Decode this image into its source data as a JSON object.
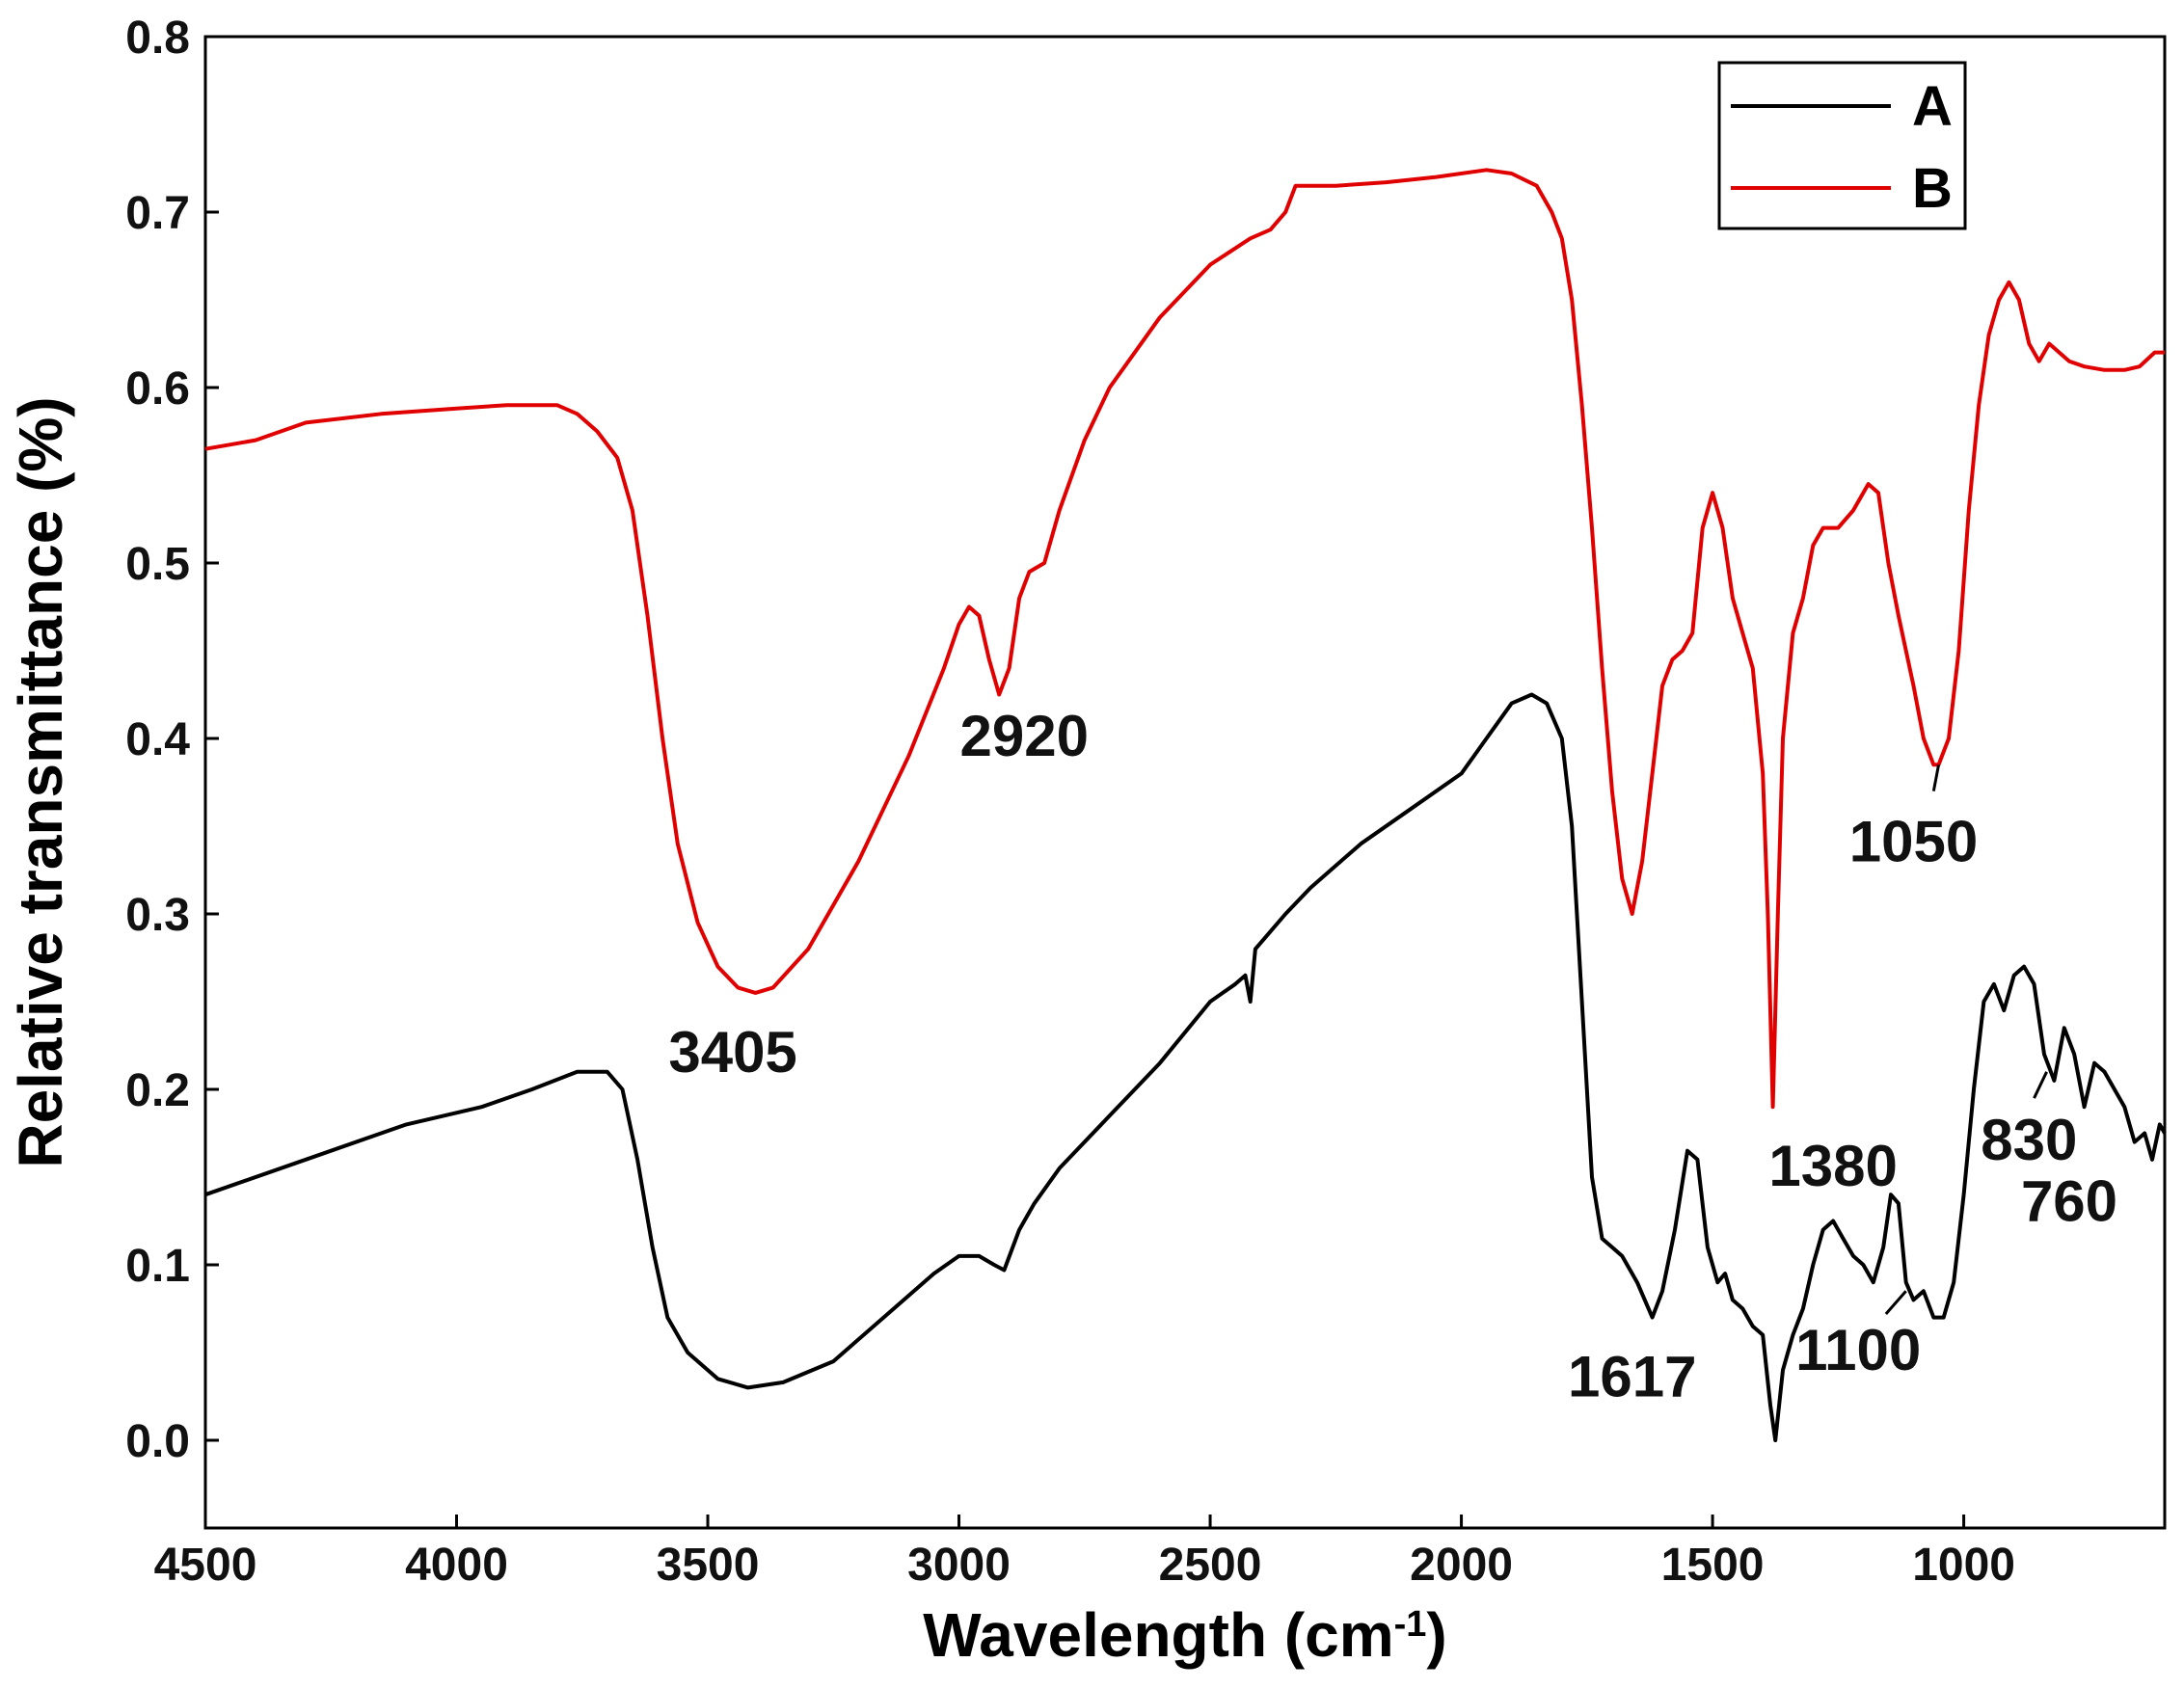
{
  "chart_data": {
    "type": "line",
    "xlabel": "Wavelength (cm",
    "xlabel_sup": "-1",
    "xlabel_close": ")",
    "ylabel": "Relative transmittance (%)",
    "xlim": [
      4500,
      600
    ],
    "ylim": [
      -0.05,
      0.8
    ],
    "x_reversed": true,
    "x_ticks": [
      4500,
      4000,
      3500,
      3000,
      2500,
      2000,
      1500,
      1000
    ],
    "x_tick_labels": [
      "4500",
      "4000",
      "3500",
      "3000",
      "2500",
      "2000",
      "1500",
      "1000"
    ],
    "y_ticks": [
      0.0,
      0.1,
      0.2,
      0.3,
      0.4,
      0.5,
      0.6,
      0.7,
      0.8
    ],
    "y_tick_labels": [
      "0.0",
      "0.1",
      "0.2",
      "0.3",
      "0.4",
      "0.5",
      "0.6",
      "0.7",
      "0.8"
    ],
    "grid": false,
    "legend_position": "top-right",
    "series": [
      {
        "name": "A",
        "color": "#000000",
        "points": [
          [
            4500,
            0.14
          ],
          [
            4300,
            0.16
          ],
          [
            4100,
            0.18
          ],
          [
            3950,
            0.19
          ],
          [
            3850,
            0.2
          ],
          [
            3760,
            0.21
          ],
          [
            3700,
            0.21
          ],
          [
            3670,
            0.2
          ],
          [
            3640,
            0.16
          ],
          [
            3610,
            0.11
          ],
          [
            3580,
            0.07
          ],
          [
            3540,
            0.05
          ],
          [
            3480,
            0.035
          ],
          [
            3420,
            0.03
          ],
          [
            3350,
            0.033
          ],
          [
            3250,
            0.045
          ],
          [
            3150,
            0.07
          ],
          [
            3050,
            0.095
          ],
          [
            3000,
            0.105
          ],
          [
            2960,
            0.105
          ],
          [
            2930,
            0.1
          ],
          [
            2910,
            0.097
          ],
          [
            2880,
            0.12
          ],
          [
            2850,
            0.135
          ],
          [
            2800,
            0.155
          ],
          [
            2700,
            0.185
          ],
          [
            2600,
            0.215
          ],
          [
            2500,
            0.25
          ],
          [
            2450,
            0.26
          ],
          [
            2430,
            0.265
          ],
          [
            2420,
            0.25
          ],
          [
            2410,
            0.28
          ],
          [
            2380,
            0.29
          ],
          [
            2350,
            0.3
          ],
          [
            2300,
            0.315
          ],
          [
            2200,
            0.34
          ],
          [
            2100,
            0.36
          ],
          [
            2000,
            0.38
          ],
          [
            1950,
            0.4
          ],
          [
            1900,
            0.42
          ],
          [
            1860,
            0.425
          ],
          [
            1830,
            0.42
          ],
          [
            1800,
            0.4
          ],
          [
            1780,
            0.35
          ],
          [
            1760,
            0.25
          ],
          [
            1740,
            0.15
          ],
          [
            1720,
            0.115
          ],
          [
            1700,
            0.11
          ],
          [
            1680,
            0.105
          ],
          [
            1650,
            0.09
          ],
          [
            1620,
            0.07
          ],
          [
            1600,
            0.085
          ],
          [
            1575,
            0.12
          ],
          [
            1550,
            0.165
          ],
          [
            1530,
            0.16
          ],
          [
            1510,
            0.11
          ],
          [
            1490,
            0.09
          ],
          [
            1475,
            0.095
          ],
          [
            1460,
            0.08
          ],
          [
            1440,
            0.075
          ],
          [
            1420,
            0.065
          ],
          [
            1400,
            0.06
          ],
          [
            1385,
            0.02
          ],
          [
            1375,
            0.0
          ],
          [
            1360,
            0.04
          ],
          [
            1340,
            0.06
          ],
          [
            1320,
            0.075
          ],
          [
            1300,
            0.1
          ],
          [
            1280,
            0.12
          ],
          [
            1260,
            0.125
          ],
          [
            1240,
            0.115
          ],
          [
            1220,
            0.105
          ],
          [
            1200,
            0.1
          ],
          [
            1180,
            0.09
          ],
          [
            1160,
            0.11
          ],
          [
            1145,
            0.14
          ],
          [
            1130,
            0.135
          ],
          [
            1115,
            0.09
          ],
          [
            1100,
            0.08
          ],
          [
            1080,
            0.085
          ],
          [
            1060,
            0.07
          ],
          [
            1040,
            0.07
          ],
          [
            1020,
            0.09
          ],
          [
            1000,
            0.14
          ],
          [
            980,
            0.2
          ],
          [
            960,
            0.25
          ],
          [
            940,
            0.26
          ],
          [
            920,
            0.245
          ],
          [
            900,
            0.265
          ],
          [
            880,
            0.27
          ],
          [
            860,
            0.26
          ],
          [
            840,
            0.22
          ],
          [
            820,
            0.205
          ],
          [
            800,
            0.235
          ],
          [
            780,
            0.22
          ],
          [
            760,
            0.19
          ],
          [
            740,
            0.215
          ],
          [
            720,
            0.21
          ],
          [
            700,
            0.2
          ],
          [
            680,
            0.19
          ],
          [
            660,
            0.17
          ],
          [
            640,
            0.175
          ],
          [
            625,
            0.16
          ],
          [
            610,
            0.18
          ],
          [
            600,
            0.175
          ]
        ]
      },
      {
        "name": "B",
        "color": "#e00000",
        "points": [
          [
            4500,
            0.565
          ],
          [
            4400,
            0.57
          ],
          [
            4300,
            0.58
          ],
          [
            4150,
            0.585
          ],
          [
            4000,
            0.588
          ],
          [
            3900,
            0.59
          ],
          [
            3800,
            0.59
          ],
          [
            3760,
            0.585
          ],
          [
            3720,
            0.575
          ],
          [
            3680,
            0.56
          ],
          [
            3650,
            0.53
          ],
          [
            3620,
            0.47
          ],
          [
            3590,
            0.4
          ],
          [
            3560,
            0.34
          ],
          [
            3520,
            0.295
          ],
          [
            3480,
            0.27
          ],
          [
            3440,
            0.258
          ],
          [
            3405,
            0.255
          ],
          [
            3370,
            0.258
          ],
          [
            3300,
            0.28
          ],
          [
            3200,
            0.33
          ],
          [
            3100,
            0.39
          ],
          [
            3030,
            0.44
          ],
          [
            3000,
            0.465
          ],
          [
            2980,
            0.475
          ],
          [
            2960,
            0.47
          ],
          [
            2940,
            0.445
          ],
          [
            2920,
            0.425
          ],
          [
            2900,
            0.44
          ],
          [
            2880,
            0.48
          ],
          [
            2860,
            0.495
          ],
          [
            2830,
            0.5
          ],
          [
            2800,
            0.53
          ],
          [
            2750,
            0.57
          ],
          [
            2700,
            0.6
          ],
          [
            2600,
            0.64
          ],
          [
            2500,
            0.67
          ],
          [
            2420,
            0.685
          ],
          [
            2380,
            0.69
          ],
          [
            2350,
            0.7
          ],
          [
            2330,
            0.715
          ],
          [
            2300,
            0.715
          ],
          [
            2250,
            0.715
          ],
          [
            2150,
            0.717
          ],
          [
            2050,
            0.72
          ],
          [
            1950,
            0.724
          ],
          [
            1900,
            0.722
          ],
          [
            1850,
            0.715
          ],
          [
            1820,
            0.7
          ],
          [
            1800,
            0.685
          ],
          [
            1780,
            0.65
          ],
          [
            1760,
            0.59
          ],
          [
            1740,
            0.52
          ],
          [
            1720,
            0.44
          ],
          [
            1700,
            0.37
          ],
          [
            1680,
            0.32
          ],
          [
            1660,
            0.3
          ],
          [
            1640,
            0.33
          ],
          [
            1620,
            0.38
          ],
          [
            1600,
            0.43
          ],
          [
            1580,
            0.445
          ],
          [
            1560,
            0.45
          ],
          [
            1540,
            0.46
          ],
          [
            1520,
            0.52
          ],
          [
            1500,
            0.54
          ],
          [
            1480,
            0.52
          ],
          [
            1460,
            0.48
          ],
          [
            1440,
            0.46
          ],
          [
            1420,
            0.44
          ],
          [
            1400,
            0.38
          ],
          [
            1390,
            0.3
          ],
          [
            1380,
            0.19
          ],
          [
            1370,
            0.3
          ],
          [
            1360,
            0.4
          ],
          [
            1340,
            0.46
          ],
          [
            1320,
            0.48
          ],
          [
            1300,
            0.51
          ],
          [
            1280,
            0.52
          ],
          [
            1250,
            0.52
          ],
          [
            1220,
            0.53
          ],
          [
            1190,
            0.545
          ],
          [
            1170,
            0.54
          ],
          [
            1150,
            0.5
          ],
          [
            1130,
            0.47
          ],
          [
            1100,
            0.43
          ],
          [
            1080,
            0.4
          ],
          [
            1060,
            0.385
          ],
          [
            1050,
            0.385
          ],
          [
            1030,
            0.4
          ],
          [
            1010,
            0.45
          ],
          [
            990,
            0.53
          ],
          [
            970,
            0.59
          ],
          [
            950,
            0.63
          ],
          [
            930,
            0.65
          ],
          [
            910,
            0.66
          ],
          [
            890,
            0.65
          ],
          [
            870,
            0.625
          ],
          [
            850,
            0.615
          ],
          [
            830,
            0.625
          ],
          [
            810,
            0.62
          ],
          [
            790,
            0.615
          ],
          [
            760,
            0.612
          ],
          [
            720,
            0.61
          ],
          [
            680,
            0.61
          ],
          [
            650,
            0.612
          ],
          [
            620,
            0.62
          ],
          [
            600,
            0.62
          ]
        ]
      }
    ],
    "annotations": [
      {
        "text": "3405",
        "x": 3450,
        "y": 0.21,
        "leader": null
      },
      {
        "text": "2920",
        "x": 2870,
        "y": 0.39,
        "leader": null
      },
      {
        "text": "1050",
        "x": 1100,
        "y": 0.33,
        "leader": [
          [
            1060,
            0.37
          ],
          [
            1050,
            0.385
          ]
        ]
      },
      {
        "text": "1380",
        "x": 1260,
        "y": 0.145,
        "leader": null
      },
      {
        "text": "1617",
        "x": 1660,
        "y": 0.025,
        "leader": null
      },
      {
        "text": "1100",
        "x": 1210,
        "y": 0.04,
        "leader": [
          [
            1155,
            0.072
          ],
          [
            1115,
            0.085
          ]
        ]
      },
      {
        "text": "830",
        "x": 870,
        "y": 0.16,
        "leader": [
          [
            860,
            0.195
          ],
          [
            835,
            0.21
          ]
        ]
      },
      {
        "text": "760",
        "x": 790,
        "y": 0.125,
        "leader": null
      }
    ]
  }
}
